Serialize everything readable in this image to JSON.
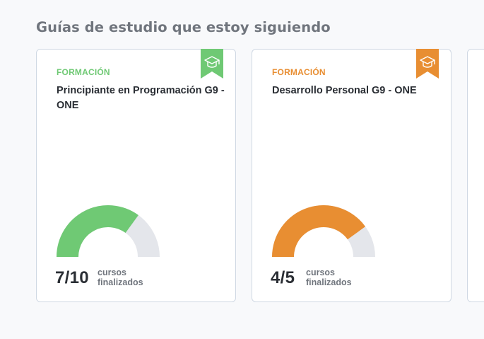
{
  "section": {
    "title": "Guías de estudio que estoy siguiendo"
  },
  "cards": [
    {
      "category": "FORMACIÓN",
      "title": "Principiante en Programación G9 - ONE",
      "finished": 7,
      "total": 10,
      "count_text": "7/10",
      "label_line1": "cursos",
      "label_line2": "finalizados",
      "accent_color": "#6fc974",
      "ribbon_icon": "graduation-cap-icon"
    },
    {
      "category": "FORMACIÓN",
      "title": "Desarrollo Personal G9 - ONE",
      "finished": 4,
      "total": 5,
      "count_text": "4/5",
      "label_line1": "cursos",
      "label_line2": "finalizados",
      "accent_color": "#e88e32",
      "ribbon_icon": "graduation-cap-icon"
    }
  ],
  "colors": {
    "gauge_track": "#e4e6eb",
    "card_border": "#cfd8e3",
    "page_background": "#f8f9fb"
  }
}
